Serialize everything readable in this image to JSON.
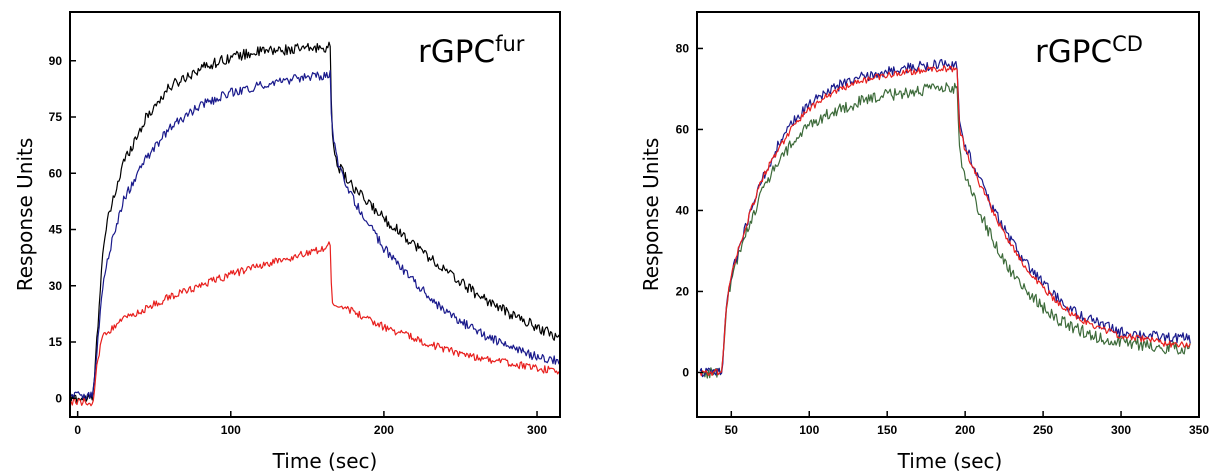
{
  "chart_data": [
    {
      "type": "line",
      "title_main": "rGPC",
      "title_sup": "fur",
      "xlabel": "Time (sec)",
      "ylabel": "Response Units",
      "xlim": [
        -5,
        315
      ],
      "ylim": [
        -5,
        103
      ],
      "xticks": [
        0,
        100,
        200,
        300
      ],
      "yticks": [
        0,
        15,
        30,
        45,
        60,
        75,
        90
      ],
      "legend": "none",
      "grid": false,
      "series": [
        {
          "color": "#000000",
          "noise": 1.4,
          "x": [
            -5,
            10,
            13,
            16,
            20,
            30,
            45,
            60,
            80,
            100,
            120,
            140,
            160,
            165,
            166,
            170,
            180,
            200,
            220,
            240,
            260,
            280,
            300,
            315
          ],
          "y": [
            0,
            0,
            18,
            38,
            48,
            63,
            75,
            83,
            88,
            91,
            92.5,
            93,
            93.5,
            94,
            70,
            62,
            56,
            48,
            41,
            34,
            28,
            23,
            19,
            16
          ]
        },
        {
          "color": "#1a1a8c",
          "noise": 1.2,
          "x": [
            -5,
            10,
            13,
            16,
            20,
            30,
            45,
            60,
            80,
            100,
            120,
            140,
            160,
            165,
            166,
            170,
            180,
            200,
            220,
            240,
            260,
            280,
            300,
            315
          ],
          "y": [
            1,
            1,
            14,
            29,
            38,
            53,
            64,
            72,
            78,
            81.5,
            83.5,
            85,
            86,
            86.5,
            72,
            62,
            53,
            40,
            31,
            23,
            18,
            14,
            11,
            10
          ]
        },
        {
          "color": "#e8201e",
          "noise": 1.0,
          "x": [
            -5,
            10,
            13,
            16,
            20,
            30,
            45,
            60,
            80,
            100,
            120,
            140,
            160,
            165,
            166,
            170,
            180,
            200,
            220,
            240,
            260,
            280,
            300,
            315
          ],
          "y": [
            -1,
            -1,
            10,
            16,
            18,
            21,
            24,
            27,
            30,
            33,
            35.5,
            37.5,
            40,
            41,
            26,
            25,
            23,
            19,
            16,
            13,
            11,
            9.5,
            8,
            7
          ]
        }
      ]
    },
    {
      "type": "line",
      "title_main": "rGPC",
      "title_sup": "CD",
      "xlabel": "Time (sec)",
      "ylabel": "Response Units",
      "xlim": [
        28,
        350
      ],
      "ylim": [
        -11,
        89
      ],
      "xticks": [
        50,
        100,
        150,
        200,
        250,
        300,
        350
      ],
      "yticks": [
        0,
        20,
        40,
        60,
        80
      ],
      "legend": "none",
      "grid": false,
      "series": [
        {
          "color": "#3d6b3a",
          "noise": 1.5,
          "x": [
            30,
            44,
            47,
            50,
            55,
            60,
            70,
            80,
            90,
            100,
            110,
            120,
            130,
            140,
            150,
            160,
            170,
            180,
            190,
            195,
            196,
            200,
            210,
            220,
            230,
            240,
            250,
            260,
            270,
            280,
            290,
            300,
            310,
            320,
            330,
            345
          ],
          "y": [
            0,
            0,
            16,
            23,
            29,
            35,
            45,
            52,
            57,
            61,
            63.5,
            65,
            66.5,
            67.5,
            68.5,
            69,
            69.5,
            70,
            70,
            70.5,
            55,
            49,
            39,
            31,
            24.5,
            20,
            16,
            13,
            11,
            9.5,
            8,
            7.5,
            7,
            6.5,
            6,
            6
          ]
        },
        {
          "color": "#1a1a8c",
          "noise": 1.3,
          "x": [
            30,
            44,
            47,
            50,
            55,
            60,
            70,
            80,
            90,
            100,
            110,
            120,
            130,
            140,
            150,
            160,
            170,
            180,
            190,
            195,
            196,
            200,
            210,
            220,
            230,
            240,
            250,
            260,
            270,
            280,
            290,
            300,
            310,
            320,
            330,
            345
          ],
          "y": [
            0,
            0,
            17,
            24,
            31,
            37,
            48,
            56,
            62,
            66,
            69,
            71,
            72.5,
            73.5,
            74.5,
            75,
            75.5,
            76,
            76,
            76,
            63,
            56,
            47,
            39,
            32,
            26.5,
            22,
            18,
            15,
            13,
            11.5,
            10,
            9.5,
            9,
            8.5,
            8.5
          ]
        },
        {
          "color": "#e8201e",
          "noise": 0.8,
          "x": [
            30,
            44,
            47,
            50,
            55,
            60,
            70,
            80,
            90,
            100,
            110,
            120,
            130,
            140,
            150,
            160,
            170,
            180,
            190,
            195,
            196,
            200,
            210,
            220,
            230,
            240,
            250,
            260,
            270,
            280,
            290,
            300,
            310,
            320,
            330,
            345
          ],
          "y": [
            0,
            0,
            17,
            24,
            31,
            37,
            48,
            55,
            61,
            65,
            68,
            70,
            71.5,
            72.5,
            73.5,
            74,
            74.5,
            75,
            75,
            75,
            61,
            55,
            46,
            38,
            31,
            25.5,
            21,
            17,
            14,
            12,
            10.5,
            9,
            8.5,
            8,
            7,
            7
          ]
        }
      ]
    }
  ]
}
